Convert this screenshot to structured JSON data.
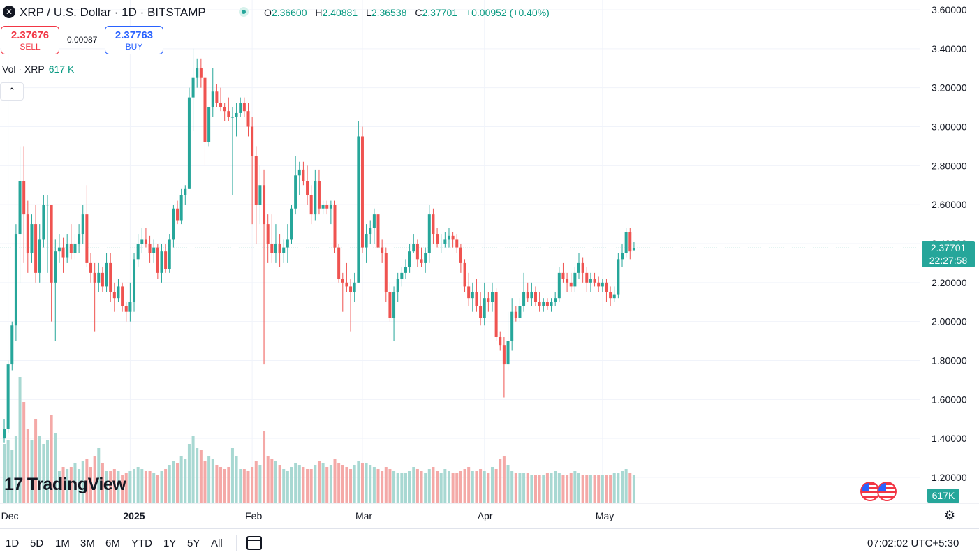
{
  "header": {
    "title": "XRP / U.S. Dollar · 1D · BITSTAMP",
    "open_label": "O",
    "open": "2.36600",
    "high_label": "H",
    "high": "2.40881",
    "low_label": "L",
    "low": "2.36538",
    "close_label": "C",
    "close": "2.37701",
    "change": "+0.00952 (+0.40%)"
  },
  "trade": {
    "sell_price": "2.37676",
    "sell_label": "SELL",
    "spread": "0.00087",
    "buy_price": "2.37763",
    "buy_label": "BUY"
  },
  "volume_legend": {
    "label": "Vol · XRP",
    "value": "617 K"
  },
  "watermark": "TradingView",
  "last_price_tag": {
    "price": "2.37701",
    "countdown": "22:27:58"
  },
  "volume_tag": "617K",
  "bottom_bar": {
    "ranges": [
      "1D",
      "5D",
      "1M",
      "3M",
      "6M",
      "YTD",
      "1Y",
      "5Y",
      "All"
    ],
    "clock": "07:02:02 UTC+5:30"
  },
  "colors": {
    "up": "#26a69a",
    "down": "#ef5350",
    "up_volume": "#a8d8d2",
    "down_volume": "#f4a9a7",
    "grid": "#f0f3fa"
  },
  "chart_data": {
    "type": "candlestick",
    "symbol": "XRP / U.S. Dollar",
    "interval": "1D",
    "exchange": "BITSTAMP",
    "ylim": [
      1.1,
      3.62
    ],
    "y_ticks": [
      "3.60000",
      "3.40000",
      "3.20000",
      "3.00000",
      "2.80000",
      "2.60000",
      "2.40000",
      "2.20000",
      "2.00000",
      "1.80000",
      "1.60000",
      "1.40000",
      "1.20000"
    ],
    "x_ticks": [
      {
        "label": "Dec",
        "date": "2024-12-01"
      },
      {
        "label": "2025",
        "date": "2025-01-01"
      },
      {
        "label": "Feb",
        "date": "2025-02-01"
      },
      {
        "label": "Mar",
        "date": "2025-03-01"
      },
      {
        "label": "Apr",
        "date": "2025-04-01"
      },
      {
        "label": "May",
        "date": "2025-05-01"
      }
    ],
    "first_date": "2024-11-30",
    "grid": true,
    "candles": [
      [
        1.4,
        1.5,
        1.38,
        1.45
      ],
      [
        1.45,
        1.8,
        1.43,
        1.78
      ],
      [
        1.78,
        2.0,
        1.75,
        1.98
      ],
      [
        1.98,
        2.5,
        1.9,
        2.45
      ],
      [
        2.45,
        2.9,
        2.2,
        2.72
      ],
      [
        2.72,
        2.9,
        2.3,
        2.55
      ],
      [
        2.55,
        2.62,
        2.25,
        2.35
      ],
      [
        2.35,
        2.55,
        2.3,
        2.5
      ],
      [
        2.5,
        2.6,
        2.2,
        2.25
      ],
      [
        2.25,
        2.5,
        2.2,
        2.42
      ],
      [
        2.42,
        2.65,
        2.38,
        2.6
      ],
      [
        2.6,
        2.65,
        2.25,
        2.6
      ],
      [
        2.6,
        2.6,
        2.0,
        2.2
      ],
      [
        2.2,
        2.42,
        1.9,
        2.36
      ],
      [
        2.36,
        2.45,
        2.3,
        2.38
      ],
      [
        2.38,
        2.43,
        2.25,
        2.33
      ],
      [
        2.33,
        2.45,
        2.3,
        2.4
      ],
      [
        2.4,
        2.5,
        2.32,
        2.35
      ],
      [
        2.35,
        2.45,
        2.32,
        2.4
      ],
      [
        2.4,
        2.5,
        2.35,
        2.45
      ],
      [
        2.45,
        2.6,
        2.4,
        2.55
      ],
      [
        2.55,
        2.7,
        2.28,
        2.3
      ],
      [
        2.3,
        2.35,
        2.2,
        2.25
      ],
      [
        2.25,
        2.3,
        1.95,
        2.2
      ],
      [
        2.2,
        2.3,
        2.15,
        2.25
      ],
      [
        2.25,
        2.28,
        2.15,
        2.18
      ],
      [
        2.18,
        2.35,
        2.15,
        2.3
      ],
      [
        2.3,
        2.35,
        2.1,
        2.15
      ],
      [
        2.15,
        2.2,
        2.05,
        2.12
      ],
      [
        2.12,
        2.22,
        2.1,
        2.18
      ],
      [
        2.18,
        2.2,
        2.05,
        2.08
      ],
      [
        2.08,
        2.1,
        2.0,
        2.05
      ],
      [
        2.05,
        2.2,
        2.0,
        2.1
      ],
      [
        2.1,
        2.35,
        2.05,
        2.32
      ],
      [
        2.32,
        2.45,
        2.28,
        2.4
      ],
      [
        2.4,
        2.48,
        2.35,
        2.42
      ],
      [
        2.42,
        2.48,
        2.38,
        2.4
      ],
      [
        2.4,
        2.44,
        2.3,
        2.35
      ],
      [
        2.35,
        2.42,
        2.3,
        2.38
      ],
      [
        2.38,
        2.4,
        2.22,
        2.25
      ],
      [
        2.25,
        2.4,
        2.2,
        2.36
      ],
      [
        2.36,
        2.4,
        2.25,
        2.27
      ],
      [
        2.27,
        2.45,
        2.25,
        2.42
      ],
      [
        2.42,
        2.6,
        2.38,
        2.58
      ],
      [
        2.58,
        2.62,
        2.5,
        2.52
      ],
      [
        2.52,
        2.68,
        2.5,
        2.65
      ],
      [
        2.65,
        2.7,
        2.6,
        2.68
      ],
      [
        2.68,
        3.2,
        2.68,
        3.15
      ],
      [
        3.15,
        3.4,
        2.98,
        3.25
      ],
      [
        3.25,
        3.35,
        3.2,
        3.3
      ],
      [
        3.3,
        3.35,
        3.2,
        3.25
      ],
      [
        3.25,
        3.28,
        2.8,
        2.92
      ],
      [
        2.92,
        3.1,
        2.9,
        3.1
      ],
      [
        3.1,
        3.3,
        3.05,
        3.18
      ],
      [
        3.18,
        3.22,
        3.1,
        3.12
      ],
      [
        3.12,
        3.2,
        3.08,
        3.1
      ],
      [
        3.1,
        3.12,
        3.03,
        3.08
      ],
      [
        3.08,
        3.15,
        3.03,
        3.05
      ],
      [
        3.05,
        3.1,
        2.65,
        3.05
      ],
      [
        3.05,
        3.12,
        2.95,
        3.07
      ],
      [
        3.07,
        3.15,
        3.05,
        3.12
      ],
      [
        3.12,
        3.15,
        3.05,
        3.08
      ],
      [
        3.08,
        3.12,
        2.95,
        3.0
      ],
      [
        3.0,
        3.05,
        2.5,
        2.85
      ],
      [
        2.85,
        2.9,
        2.4,
        2.6
      ],
      [
        2.6,
        2.8,
        2.5,
        2.7
      ],
      [
        2.7,
        2.78,
        1.78,
        2.5
      ],
      [
        2.5,
        2.55,
        2.3,
        2.4
      ],
      [
        2.4,
        2.55,
        2.3,
        2.35
      ],
      [
        2.35,
        2.5,
        2.3,
        2.4
      ],
      [
        2.4,
        2.45,
        2.28,
        2.35
      ],
      [
        2.35,
        2.42,
        2.3,
        2.38
      ],
      [
        2.38,
        2.5,
        2.3,
        2.42
      ],
      [
        2.42,
        2.6,
        2.4,
        2.58
      ],
      [
        2.58,
        2.85,
        2.55,
        2.75
      ],
      [
        2.75,
        2.82,
        2.65,
        2.78
      ],
      [
        2.78,
        2.82,
        2.7,
        2.72
      ],
      [
        2.72,
        2.8,
        2.6,
        2.65
      ],
      [
        2.65,
        2.7,
        2.5,
        2.55
      ],
      [
        2.55,
        2.78,
        2.52,
        2.72
      ],
      [
        2.72,
        2.78,
        2.55,
        2.58
      ],
      [
        2.58,
        2.62,
        2.55,
        2.6
      ],
      [
        2.6,
        2.62,
        2.55,
        2.58
      ],
      [
        2.58,
        2.62,
        2.5,
        2.6
      ],
      [
        2.6,
        2.62,
        2.35,
        2.38
      ],
      [
        2.38,
        2.4,
        2.2,
        2.22
      ],
      [
        2.22,
        2.25,
        2.05,
        2.2
      ],
      [
        2.2,
        2.3,
        2.15,
        2.18
      ],
      [
        2.18,
        2.22,
        1.95,
        2.15
      ],
      [
        2.15,
        2.25,
        2.1,
        2.2
      ],
      [
        2.2,
        3.03,
        2.2,
        2.95
      ],
      [
        2.95,
        3.0,
        2.35,
        2.38
      ],
      [
        2.38,
        2.5,
        2.3,
        2.45
      ],
      [
        2.45,
        2.52,
        2.4,
        2.48
      ],
      [
        2.48,
        2.58,
        2.4,
        2.55
      ],
      [
        2.55,
        2.65,
        2.35,
        2.38
      ],
      [
        2.38,
        2.42,
        2.3,
        2.35
      ],
      [
        2.35,
        2.38,
        2.1,
        2.15
      ],
      [
        2.15,
        2.2,
        2.0,
        2.02
      ],
      [
        2.02,
        2.18,
        1.9,
        2.15
      ],
      [
        2.15,
        2.25,
        2.1,
        2.22
      ],
      [
        2.22,
        2.28,
        2.18,
        2.25
      ],
      [
        2.25,
        2.32,
        2.22,
        2.28
      ],
      [
        2.28,
        2.4,
        2.25,
        2.36
      ],
      [
        2.36,
        2.45,
        2.35,
        2.4
      ],
      [
        2.4,
        2.42,
        2.28,
        2.32
      ],
      [
        2.32,
        2.38,
        2.28,
        2.3
      ],
      [
        2.3,
        2.38,
        2.25,
        2.35
      ],
      [
        2.35,
        2.6,
        2.3,
        2.55
      ],
      [
        2.55,
        2.58,
        2.4,
        2.45
      ],
      [
        2.45,
        2.48,
        2.38,
        2.4
      ],
      [
        2.4,
        2.45,
        2.35,
        2.4
      ],
      [
        2.4,
        2.46,
        2.38,
        2.42
      ],
      [
        2.42,
        2.48,
        2.38,
        2.44
      ],
      [
        2.44,
        2.46,
        2.38,
        2.42
      ],
      [
        2.42,
        2.45,
        2.35,
        2.38
      ],
      [
        2.38,
        2.4,
        2.25,
        2.3
      ],
      [
        2.3,
        2.32,
        2.15,
        2.18
      ],
      [
        2.18,
        2.25,
        2.08,
        2.12
      ],
      [
        2.12,
        2.2,
        2.05,
        2.15
      ],
      [
        2.15,
        2.22,
        2.05,
        2.08
      ],
      [
        2.08,
        2.15,
        1.98,
        2.02
      ],
      [
        2.02,
        2.2,
        1.98,
        2.12
      ],
      [
        2.12,
        2.15,
        2.05,
        2.1
      ],
      [
        2.1,
        2.2,
        2.05,
        2.15
      ],
      [
        2.15,
        2.17,
        1.9,
        1.92
      ],
      [
        1.92,
        1.95,
        1.85,
        1.88
      ],
      [
        1.88,
        1.92,
        1.61,
        1.78
      ],
      [
        1.78,
        2.05,
        1.75,
        1.9
      ],
      [
        1.9,
        2.12,
        1.85,
        2.05
      ],
      [
        2.05,
        2.08,
        2.0,
        2.02
      ],
      [
        2.02,
        2.12,
        2.0,
        2.08
      ],
      [
        2.08,
        2.25,
        2.05,
        2.15
      ],
      [
        2.15,
        2.2,
        2.1,
        2.12
      ],
      [
        2.12,
        2.2,
        2.08,
        2.15
      ],
      [
        2.15,
        2.18,
        2.08,
        2.1
      ],
      [
        2.1,
        2.15,
        2.05,
        2.08
      ],
      [
        2.08,
        2.12,
        2.05,
        2.1
      ],
      [
        2.1,
        2.12,
        2.06,
        2.08
      ],
      [
        2.08,
        2.12,
        2.05,
        2.1
      ],
      [
        2.1,
        2.15,
        2.08,
        2.12
      ],
      [
        2.12,
        2.28,
        2.1,
        2.25
      ],
      [
        2.25,
        2.3,
        2.2,
        2.22
      ],
      [
        2.22,
        2.25,
        2.15,
        2.2
      ],
      [
        2.2,
        2.25,
        2.15,
        2.18
      ],
      [
        2.18,
        2.28,
        2.15,
        2.25
      ],
      [
        2.25,
        2.35,
        2.22,
        2.3
      ],
      [
        2.3,
        2.33,
        2.2,
        2.25
      ],
      [
        2.25,
        2.28,
        2.15,
        2.2
      ],
      [
        2.2,
        2.25,
        2.15,
        2.22
      ],
      [
        2.22,
        2.25,
        2.18,
        2.2
      ],
      [
        2.2,
        2.23,
        2.15,
        2.18
      ],
      [
        2.18,
        2.22,
        2.15,
        2.2
      ],
      [
        2.2,
        2.22,
        2.1,
        2.15
      ],
      [
        2.15,
        2.18,
        2.08,
        2.12
      ],
      [
        2.12,
        2.18,
        2.1,
        2.14
      ],
      [
        2.14,
        2.35,
        2.12,
        2.32
      ],
      [
        2.32,
        2.4,
        2.28,
        2.35
      ],
      [
        2.35,
        2.48,
        2.33,
        2.46
      ],
      [
        2.46,
        2.48,
        2.32,
        2.36
      ],
      [
        2.366,
        2.4088,
        2.3654,
        2.377
      ]
    ],
    "volumes": [
      280,
      300,
      250,
      320,
      600,
      480,
      350,
      300,
      400,
      320,
      280,
      300,
      420,
      330,
      150,
      170,
      160,
      170,
      190,
      160,
      200,
      210,
      170,
      220,
      260,
      190,
      150,
      150,
      160,
      150,
      130,
      140,
      150,
      160,
      170,
      160,
      150,
      150,
      140,
      130,
      150,
      160,
      180,
      200,
      190,
      220,
      210,
      280,
      320,
      260,
      250,
      200,
      220,
      210,
      180,
      170,
      160,
      170,
      260,
      220,
      160,
      160,
      150,
      170,
      200,
      180,
      340,
      220,
      210,
      200,
      180,
      160,
      150,
      170,
      190,
      180,
      170,
      160,
      160,
      180,
      200,
      190,
      170,
      180,
      210,
      190,
      180,
      170,
      160,
      180,
      200,
      190,
      190,
      180,
      170,
      160,
      150,
      170,
      160,
      150,
      140,
      140,
      140,
      150,
      170,
      160,
      150,
      140,
      160,
      170,
      150,
      140,
      160,
      150,
      140,
      140,
      150,
      160,
      170,
      150,
      150,
      160,
      150,
      140,
      170,
      160,
      210,
      220,
      180,
      150,
      140,
      140,
      140,
      140,
      130,
      130,
      130,
      130,
      140,
      140,
      150,
      140,
      130,
      130,
      140,
      150,
      140,
      130,
      130,
      130,
      130,
      130,
      130,
      130,
      130,
      140,
      140,
      150,
      160,
      140,
      130
    ]
  }
}
